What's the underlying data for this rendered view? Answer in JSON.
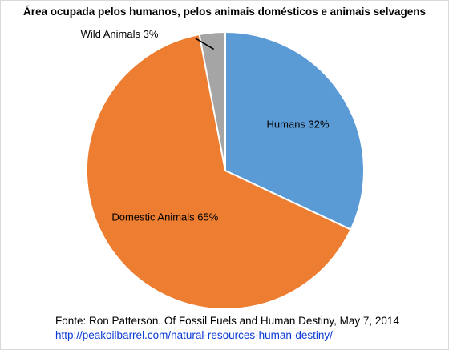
{
  "chart_data": {
    "type": "pie",
    "title": "Área ocupada pelos humanos, pelos animais domésticos e animais selvagens",
    "slices": [
      {
        "label": "Humans 32%",
        "value": 32,
        "color": "#5b9bd5"
      },
      {
        "label": "Domestic Animals 65%",
        "value": 65,
        "color": "#ed7d31"
      },
      {
        "label": "Wild Animals 3%",
        "value": 3,
        "color": "#a5a5a5"
      }
    ],
    "start": "12 o'clock",
    "direction": "clockwise",
    "legend": "none"
  },
  "source": {
    "text": "Fonte: Ron Patterson. Of Fossil Fuels and Human Destiny,  May 7, 2014",
    "link": "http://peakoilbarrel.com/natural-resources-human-destiny/"
  }
}
